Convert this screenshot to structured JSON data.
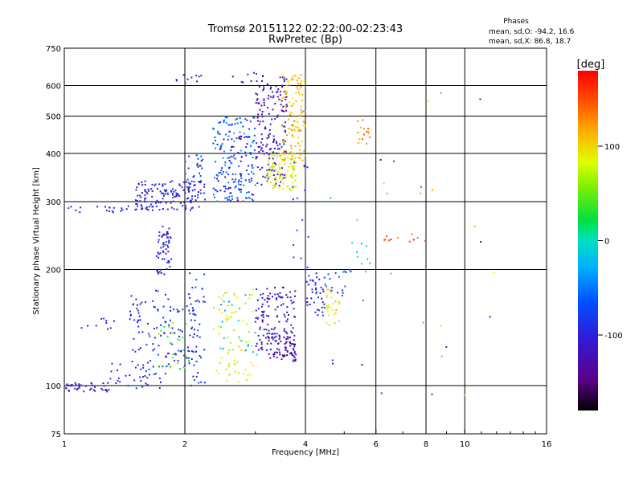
{
  "chart_data": {
    "type": "scatter",
    "title": "Tromsø 20151122 02:22:00-02:23:43",
    "subtitle": "RwPretec (Bp)",
    "xlabel": "Frequency [MHz]",
    "ylabel": "Stationary phase Virtual Height [km]",
    "x_scale": "log",
    "y_scale": "log",
    "xlim": [
      1,
      16
    ],
    "ylim": [
      75,
      750
    ],
    "x_ticks": [
      1,
      2,
      4,
      6,
      8,
      10,
      16
    ],
    "x_tick_labels": [
      "1",
      "2",
      "4",
      "6",
      "8",
      "10",
      "16"
    ],
    "y_ticks": [
      75,
      100,
      200,
      300,
      400,
      500,
      600,
      750
    ],
    "y_tick_labels": [
      "75",
      "100",
      "200",
      "300",
      "400",
      "500",
      "600",
      "750"
    ],
    "x_gridlines": [
      2,
      4,
      6,
      8,
      10
    ],
    "y_gridlines": [
      100,
      200,
      300,
      400,
      500,
      600
    ],
    "grid": true,
    "phases": {
      "heading": "Phases",
      "line_o": "mean, sd,O: -94.2, 16.6",
      "line_x": "mean, sd,X: 86.8, 18.7"
    },
    "colorbar": {
      "label": "[deg]",
      "range": [
        -180,
        180
      ],
      "ticks": [
        100,
        0,
        -100
      ],
      "tick_labels": [
        "100",
        "0",
        "-100"
      ]
    },
    "clusters": [
      {
        "f": [
          1.0,
          1.3
        ],
        "h": [
          96,
          102
        ],
        "phase": -110,
        "n": 40
      },
      {
        "f": [
          1.3,
          1.8
        ],
        "h": [
          98,
          115
        ],
        "phase": -95,
        "n": 35
      },
      {
        "f": [
          1.1,
          1.35
        ],
        "h": [
          140,
          150
        ],
        "phase": -105,
        "n": 10
      },
      {
        "f": [
          1.45,
          2.15
        ],
        "h": [
          110,
          180
        ],
        "phase": -95,
        "n": 120
      },
      {
        "f": [
          1.7,
          2.05
        ],
        "h": [
          110,
          150
        ],
        "phase": 40,
        "n": 25
      },
      {
        "f": [
          1.7,
          1.85
        ],
        "h": [
          190,
          260
        ],
        "phase": -100,
        "n": 60
      },
      {
        "f": [
          1.0,
          1.45
        ],
        "h": [
          280,
          292
        ],
        "phase": -100,
        "n": 20
      },
      {
        "f": [
          1.5,
          2.2
        ],
        "h": [
          285,
          340
        ],
        "phase": -100,
        "n": 140
      },
      {
        "f": [
          2.0,
          2.25
        ],
        "h": [
          300,
          400
        ],
        "phase": -90,
        "n": 40
      },
      {
        "f": [
          1.9,
          2.2
        ],
        "h": [
          610,
          640
        ],
        "phase": -100,
        "n": 10
      },
      {
        "f": [
          2.05,
          2.25
        ],
        "h": [
          100,
          200
        ],
        "phase": -85,
        "n": 40
      },
      {
        "f": [
          2.35,
          3.0
        ],
        "h": [
          100,
          180
        ],
        "phase": 80,
        "n": 70
      },
      {
        "f": [
          2.45,
          3.05
        ],
        "h": [
          120,
          175
        ],
        "phase": -20,
        "n": 20
      },
      {
        "f": [
          2.35,
          3.0
        ],
        "h": [
          300,
          500
        ],
        "phase": -60,
        "n": 140
      },
      {
        "f": [
          2.4,
          3.0
        ],
        "h": [
          300,
          450
        ],
        "phase": -110,
        "n": 60
      },
      {
        "f": [
          2.6,
          3.1
        ],
        "h": [
          600,
          650
        ],
        "phase": -100,
        "n": 8
      },
      {
        "f": [
          3.0,
          3.8
        ],
        "h": [
          120,
          180
        ],
        "phase": -110,
        "n": 140
      },
      {
        "f": [
          3.2,
          3.8
        ],
        "h": [
          115,
          135
        ],
        "phase": -140,
        "n": 50
      },
      {
        "f": [
          3.0,
          3.6
        ],
        "h": [
          330,
          640
        ],
        "phase": -115,
        "n": 170
      },
      {
        "f": [
          3.2,
          3.8
        ],
        "h": [
          320,
          400
        ],
        "phase": 85,
        "n": 100
      },
      {
        "f": [
          3.5,
          4.0
        ],
        "h": [
          380,
          640
        ],
        "phase": 110,
        "n": 110
      },
      {
        "f": [
          3.7,
          4.1
        ],
        "h": [
          200,
          380
        ],
        "phase": -80,
        "n": 15
      },
      {
        "f": [
          4.0,
          4.5
        ],
        "h": [
          150,
          200
        ],
        "phase": -95,
        "n": 35
      },
      {
        "f": [
          4.5,
          4.95
        ],
        "h": [
          140,
          180
        ],
        "phase": 95,
        "n": 30
      },
      {
        "f": [
          4.2,
          5.2
        ],
        "h": [
          170,
          200
        ],
        "phase": -70,
        "n": 25
      },
      {
        "f": [
          5.4,
          5.8
        ],
        "h": [
          420,
          500
        ],
        "phase": 130,
        "n": 15
      },
      {
        "f": [
          5.2,
          5.8
        ],
        "h": [
          200,
          270
        ],
        "phase": 0,
        "n": 8
      },
      {
        "f": [
          6.0,
          8.0
        ],
        "h": [
          235,
          245
        ],
        "phase": 150,
        "n": 10
      },
      {
        "f": [
          4.3,
          12.0
        ],
        "h": [
          90,
          650
        ],
        "phase": 0,
        "n": 30
      }
    ]
  }
}
